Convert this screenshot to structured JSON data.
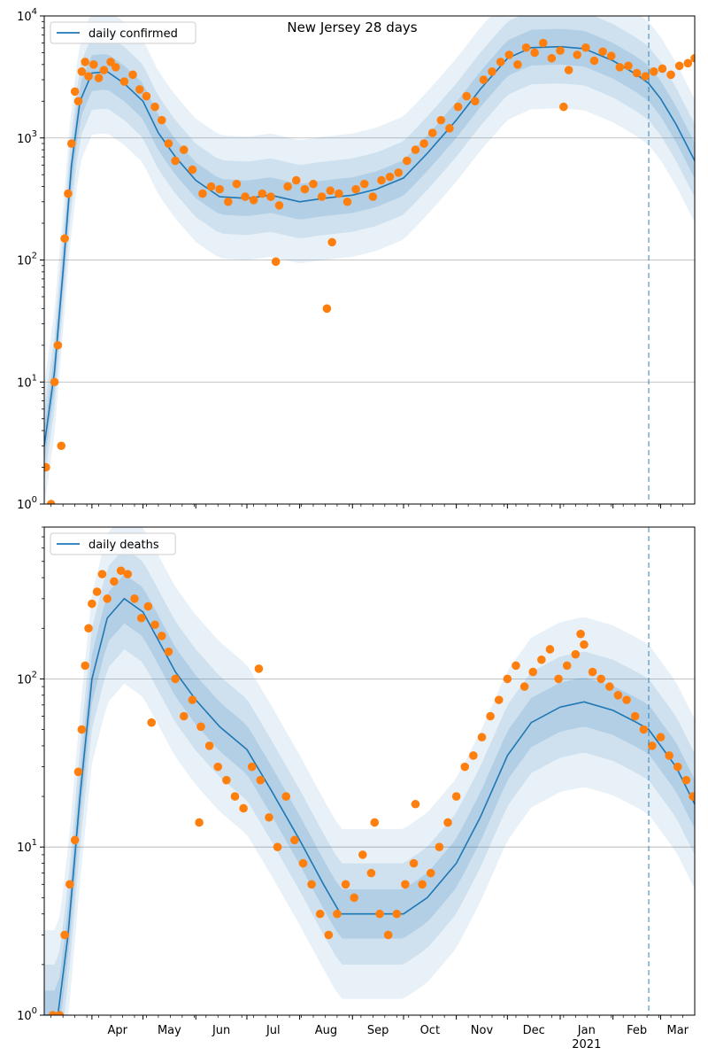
{
  "figure": {
    "title": "New Jersey 28 days",
    "year_label": "2021",
    "month_ticks": [
      "Apr",
      "May",
      "Jun",
      "Jul",
      "Aug",
      "Sep",
      "Oct",
      "Nov",
      "Dec",
      "Jan",
      "Feb",
      "Mar"
    ],
    "colors": {
      "model_line": "#1f77b4",
      "observed_points": "#ff7f0e",
      "band": "#1f77b4",
      "grid": "#b0b0b0",
      "forecast_line": "#1f77b4"
    }
  },
  "chart_data": [
    {
      "type": "line",
      "title": "New Jersey 28 days",
      "legend": [
        "daily confirmed"
      ],
      "legend_position": "top-left",
      "yscale": "log",
      "ylim": [
        1,
        10000
      ],
      "y_tick_labels": [
        "10^0",
        "10^1",
        "10^2",
        "10^3",
        "10^4"
      ],
      "x_ticks": [
        "Apr",
        "May",
        "Jun",
        "Jul",
        "Aug",
        "Sep",
        "Oct",
        "Nov",
        "Dec",
        "Jan",
        "Feb",
        "Mar"
      ],
      "grid": "horizontal",
      "forecast_start": "2021-02-22",
      "x_range": [
        "2020-03-04",
        "2021-03-21"
      ],
      "series": [
        {
          "name": "daily confirmed",
          "kind": "line",
          "dates": [
            "2020-03-04",
            "2020-03-10",
            "2020-03-15",
            "2020-03-20",
            "2020-03-25",
            "2020-04-01",
            "2020-04-10",
            "2020-04-20",
            "2020-05-01",
            "2020-05-10",
            "2020-05-20",
            "2020-06-01",
            "2020-06-15",
            "2020-07-01",
            "2020-07-15",
            "2020-08-01",
            "2020-08-15",
            "2020-09-01",
            "2020-09-15",
            "2020-10-01",
            "2020-10-15",
            "2020-11-01",
            "2020-11-15",
            "2020-12-01",
            "2020-12-15",
            "2021-01-01",
            "2021-01-15",
            "2021-02-01",
            "2021-02-15",
            "2021-02-22",
            "2021-03-01",
            "2021-03-10",
            "2021-03-21"
          ],
          "values": [
            3,
            12,
            80,
            600,
            2000,
            3400,
            3500,
            2800,
            2000,
            1100,
            700,
            450,
            330,
            320,
            340,
            300,
            320,
            340,
            380,
            470,
            750,
            1400,
            2500,
            4500,
            5500,
            5600,
            5400,
            4300,
            3300,
            2800,
            2100,
            1300,
            650
          ]
        }
      ],
      "observed": {
        "kind": "scatter",
        "dates": [
          "2020-03-05",
          "2020-03-08",
          "2020-03-10",
          "2020-03-12",
          "2020-03-14",
          "2020-03-16",
          "2020-03-18",
          "2020-03-20",
          "2020-03-22",
          "2020-03-24",
          "2020-03-26",
          "2020-03-28",
          "2020-03-30",
          "2020-04-02",
          "2020-04-05",
          "2020-04-08",
          "2020-04-12",
          "2020-04-15",
          "2020-04-20",
          "2020-04-25",
          "2020-04-29",
          "2020-05-03",
          "2020-05-08",
          "2020-05-12",
          "2020-05-16",
          "2020-05-20",
          "2020-05-25",
          "2020-05-30",
          "2020-06-05",
          "2020-06-10",
          "2020-06-15",
          "2020-06-20",
          "2020-06-25",
          "2020-06-30",
          "2020-07-05",
          "2020-07-10",
          "2020-07-15",
          "2020-07-20",
          "2020-07-25",
          "2020-07-30",
          "2020-08-04",
          "2020-08-09",
          "2020-08-14",
          "2020-08-19",
          "2020-08-24",
          "2020-08-29",
          "2020-09-03",
          "2020-09-08",
          "2020-09-13",
          "2020-09-18",
          "2020-09-23",
          "2020-09-28",
          "2020-10-03",
          "2020-10-08",
          "2020-10-13",
          "2020-10-18",
          "2020-10-23",
          "2020-10-28",
          "2020-11-02",
          "2020-11-07",
          "2020-11-12",
          "2020-11-17",
          "2020-11-22",
          "2020-11-27",
          "2020-12-02",
          "2020-12-07",
          "2020-12-12",
          "2020-12-17",
          "2020-12-22",
          "2020-12-27",
          "2021-01-01",
          "2021-01-06",
          "2021-01-11",
          "2021-01-16",
          "2021-01-21",
          "2021-01-26",
          "2021-01-31",
          "2021-02-05",
          "2021-02-10",
          "2021-02-15",
          "2021-02-20",
          "2021-02-25",
          "2021-03-02",
          "2021-03-07",
          "2021-03-12",
          "2021-03-17",
          "2021-03-21",
          "2020-07-18",
          "2020-08-17",
          "2020-08-20",
          "2021-01-03"
        ],
        "values": [
          2,
          1,
          10,
          20,
          3,
          150,
          350,
          900,
          2400,
          2000,
          3500,
          4200,
          3200,
          4000,
          3100,
          3600,
          4200,
          3800,
          2900,
          3300,
          2500,
          2200,
          1800,
          1400,
          900,
          650,
          800,
          550,
          350,
          400,
          380,
          300,
          420,
          330,
          310,
          350,
          330,
          280,
          400,
          450,
          380,
          420,
          330,
          370,
          350,
          300,
          380,
          420,
          330,
          450,
          480,
          520,
          650,
          800,
          900,
          1100,
          1400,
          1200,
          1800,
          2200,
          2000,
          3000,
          3500,
          4200,
          4800,
          4000,
          5500,
          5000,
          6000,
          4500,
          5200,
          3600,
          4800,
          5500,
          4300,
          5100,
          4700,
          3800,
          3900,
          3400,
          3200,
          3500,
          3700,
          3300,
          3900,
          4100,
          4500,
          97,
          40,
          140,
          1800
        ]
      }
    },
    {
      "type": "line",
      "legend": [
        "daily deaths"
      ],
      "legend_position": "top-left",
      "yscale": "log",
      "ylim": [
        1,
        800
      ],
      "y_tick_labels": [
        "10^0",
        "10^1",
        "10^2"
      ],
      "x_ticks": [
        "Apr",
        "May",
        "Jun",
        "Jul",
        "Aug",
        "Sep",
        "Oct",
        "Nov",
        "Dec",
        "Jan",
        "Feb",
        "Mar"
      ],
      "grid": "horizontal",
      "forecast_start": "2021-02-22",
      "x_range": [
        "2020-03-04",
        "2021-03-21"
      ],
      "series": [
        {
          "name": "daily deaths",
          "kind": "line",
          "dates": [
            "2020-03-04",
            "2020-03-12",
            "2020-03-18",
            "2020-03-25",
            "2020-04-01",
            "2020-04-10",
            "2020-04-20",
            "2020-05-01",
            "2020-05-10",
            "2020-05-20",
            "2020-06-01",
            "2020-06-15",
            "2020-07-01",
            "2020-07-15",
            "2020-08-01",
            "2020-08-15",
            "2020-08-25",
            "2020-09-01",
            "2020-09-15",
            "2020-10-01",
            "2020-10-15",
            "2020-11-01",
            "2020-11-15",
            "2020-12-01",
            "2020-12-15",
            "2021-01-01",
            "2021-01-15",
            "2021-02-01",
            "2021-02-15",
            "2021-02-22",
            "2021-03-01",
            "2021-03-10",
            "2021-03-21"
          ],
          "values": [
            1,
            1,
            3,
            20,
            100,
            230,
            300,
            250,
            170,
            110,
            75,
            52,
            38,
            22,
            11,
            6,
            4,
            4,
            4,
            4,
            5,
            8,
            15,
            35,
            55,
            68,
            73,
            65,
            55,
            50,
            40,
            30,
            18
          ]
        }
      ],
      "observed": {
        "kind": "scatter",
        "dates": [
          "2020-03-09",
          "2020-03-13",
          "2020-03-16",
          "2020-03-19",
          "2020-03-22",
          "2020-03-24",
          "2020-03-26",
          "2020-03-28",
          "2020-03-30",
          "2020-04-01",
          "2020-04-04",
          "2020-04-07",
          "2020-04-10",
          "2020-04-14",
          "2020-04-18",
          "2020-04-22",
          "2020-04-26",
          "2020-04-30",
          "2020-05-04",
          "2020-05-08",
          "2020-05-12",
          "2020-05-16",
          "2020-05-20",
          "2020-05-25",
          "2020-05-30",
          "2020-06-04",
          "2020-06-09",
          "2020-06-14",
          "2020-06-19",
          "2020-06-24",
          "2020-06-29",
          "2020-07-04",
          "2020-07-09",
          "2020-07-14",
          "2020-07-19",
          "2020-07-24",
          "2020-07-29",
          "2020-08-03",
          "2020-08-08",
          "2020-08-13",
          "2020-08-18",
          "2020-08-23",
          "2020-08-28",
          "2020-09-02",
          "2020-09-07",
          "2020-09-12",
          "2020-09-17",
          "2020-09-22",
          "2020-09-27",
          "2020-10-02",
          "2020-10-07",
          "2020-10-12",
          "2020-10-17",
          "2020-10-22",
          "2020-10-27",
          "2020-11-01",
          "2020-11-06",
          "2020-11-11",
          "2020-11-16",
          "2020-11-21",
          "2020-11-26",
          "2020-12-01",
          "2020-12-06",
          "2020-12-11",
          "2020-12-16",
          "2020-12-21",
          "2020-12-26",
          "2020-12-31",
          "2021-01-05",
          "2021-01-10",
          "2021-01-15",
          "2021-01-20",
          "2021-01-25",
          "2021-01-30",
          "2021-02-04",
          "2021-02-09",
          "2021-02-14",
          "2021-02-19",
          "2021-02-24",
          "2021-03-01",
          "2021-03-06",
          "2021-03-11",
          "2021-03-16",
          "2021-03-20",
          "2020-05-06",
          "2020-07-08",
          "2020-06-03",
          "2020-09-14",
          "2020-10-08",
          "2021-01-13"
        ],
        "values": [
          1,
          1,
          3,
          6,
          11,
          28,
          50,
          120,
          200,
          280,
          330,
          420,
          300,
          380,
          440,
          420,
          300,
          230,
          270,
          210,
          180,
          145,
          100,
          60,
          75,
          52,
          40,
          30,
          25,
          20,
          17,
          30,
          25,
          15,
          10,
          20,
          11,
          8,
          6,
          4,
          3,
          4,
          6,
          5,
          9,
          7,
          4,
          3,
          4,
          6,
          8,
          6,
          7,
          10,
          14,
          20,
          30,
          35,
          45,
          60,
          75,
          100,
          120,
          90,
          110,
          130,
          150,
          100,
          120,
          140,
          160,
          110,
          100,
          90,
          80,
          75,
          60,
          50,
          40,
          45,
          35,
          30,
          25,
          20,
          55,
          115,
          14,
          14,
          18,
          185
        ]
      }
    }
  ]
}
